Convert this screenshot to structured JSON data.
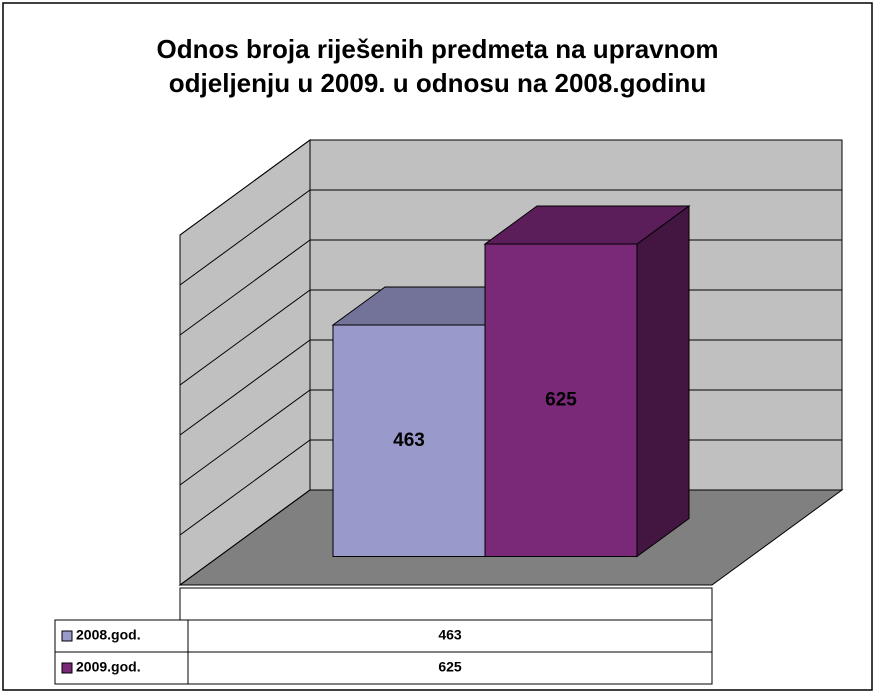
{
  "chart_data": {
    "type": "bar",
    "title": "Odnos broja riješenih predmeta na upravnom odjeljenju u 2009. u odnosu na 2008.godinu",
    "categories": [
      null
    ],
    "series": [
      {
        "name": "2008.god.",
        "color": "#9999cc",
        "values": [
          463
        ]
      },
      {
        "name": "2009.god.",
        "color": "#7a2878",
        "values": [
          625
        ]
      }
    ],
    "ylim": [
      0,
      700
    ],
    "yticks": [
      0,
      100,
      200,
      300,
      400,
      500,
      600,
      700
    ],
    "grid": true
  }
}
